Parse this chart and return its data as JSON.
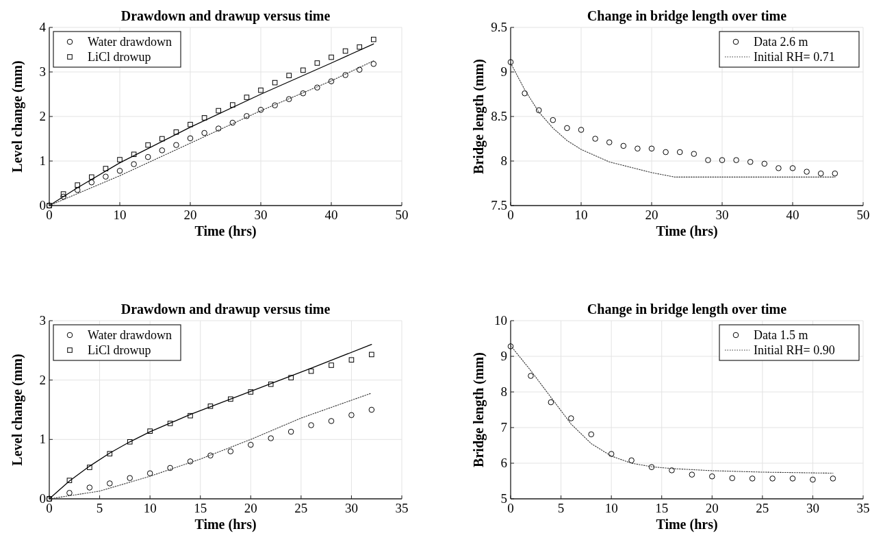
{
  "chart_data": [
    {
      "type": "scatter",
      "title": "Drawdown and drawup versus time",
      "xlabel": "Time (hrs)",
      "ylabel": "Level change (mm)",
      "xlim": [
        0,
        50
      ],
      "xticks": [
        0,
        10,
        20,
        30,
        40,
        50
      ],
      "ylim": [
        0,
        4
      ],
      "yticks": [
        0,
        1,
        2,
        3,
        4
      ],
      "grid": true,
      "legend": "top left",
      "series": [
        {
          "name": "Water drawdown",
          "marker": "circle",
          "color": "#000000",
          "x": [
            0,
            2,
            4,
            6,
            8,
            10,
            12,
            14,
            16,
            18,
            20,
            22,
            24,
            26,
            28,
            30,
            32,
            34,
            36,
            38,
            40,
            42,
            44,
            46
          ],
          "values": [
            0,
            0.2,
            0.35,
            0.52,
            0.65,
            0.78,
            0.93,
            1.09,
            1.24,
            1.36,
            1.51,
            1.63,
            1.73,
            1.86,
            2.01,
            2.15,
            2.25,
            2.39,
            2.52,
            2.65,
            2.79,
            2.93,
            3.05,
            3.18
          ]
        },
        {
          "name": "LiCl drowup",
          "type": "scatter",
          "marker": "square",
          "color": "#000000",
          "x": [
            0,
            2,
            4,
            6,
            8,
            10,
            12,
            14,
            16,
            18,
            20,
            22,
            24,
            26,
            28,
            30,
            32,
            34,
            36,
            38,
            40,
            42,
            44,
            46
          ],
          "values": [
            0,
            0.26,
            0.46,
            0.64,
            0.83,
            1.03,
            1.15,
            1.36,
            1.5,
            1.65,
            1.82,
            1.97,
            2.13,
            2.26,
            2.43,
            2.59,
            2.76,
            2.92,
            3.04,
            3.2,
            3.33,
            3.47,
            3.56,
            3.73
          ]
        },
        {
          "type": "line",
          "line_style": "solid",
          "color": "#000000",
          "x": [
            0,
            2,
            4,
            10,
            20,
            30,
            40,
            46
          ],
          "values": [
            0,
            0.2,
            0.4,
            0.96,
            1.76,
            2.5,
            3.2,
            3.63
          ]
        },
        {
          "type": "line",
          "line_style": "dotted",
          "color": "#333333",
          "x": [
            0,
            10,
            20,
            30,
            40,
            46
          ],
          "values": [
            0,
            0.67,
            1.4,
            2.13,
            2.8,
            3.25
          ]
        }
      ]
    },
    {
      "type": "scatter",
      "title": "Change in bridge length over time",
      "xlabel": "Time (hrs)",
      "ylabel": "Bridge length (mm)",
      "xlim": [
        0,
        50
      ],
      "xticks": [
        0,
        10,
        20,
        30,
        40,
        50
      ],
      "ylim": [
        7.5,
        9.5
      ],
      "yticks": [
        7.5,
        8,
        8.5,
        9,
        9.5
      ],
      "grid": true,
      "legend": "top right",
      "series": [
        {
          "name": "Data 2.6 m",
          "marker": "circle",
          "color": "#000000",
          "x": [
            0,
            2,
            4,
            6,
            8,
            10,
            12,
            14,
            16,
            18,
            20,
            22,
            24,
            26,
            28,
            30,
            32,
            34,
            36,
            38,
            40,
            42,
            44,
            46
          ],
          "values": [
            9.11,
            8.76,
            8.57,
            8.46,
            8.37,
            8.35,
            8.25,
            8.21,
            8.17,
            8.14,
            8.14,
            8.1,
            8.1,
            8.08,
            8.01,
            8.01,
            8.01,
            7.99,
            7.97,
            7.92,
            7.92,
            7.88,
            7.86,
            7.86
          ]
        },
        {
          "name": "Initial RH= 0.71",
          "type": "line",
          "line_style": "dotted",
          "color": "#333333",
          "x": [
            0,
            2,
            4,
            6,
            8,
            10,
            14,
            20,
            23.3,
            46
          ],
          "values": [
            9.1,
            8.8,
            8.55,
            8.37,
            8.23,
            8.13,
            7.99,
            7.87,
            7.82,
            7.82
          ]
        }
      ]
    },
    {
      "type": "scatter",
      "title": "Drawdown and drawup versus time",
      "xlabel": "Time (hrs)",
      "ylabel": "Level change (mm)",
      "xlim": [
        0,
        35
      ],
      "xticks": [
        0,
        5,
        10,
        15,
        20,
        25,
        30,
        35
      ],
      "ylim": [
        0,
        3
      ],
      "yticks": [
        0,
        1,
        2,
        3
      ],
      "grid": true,
      "legend": "top left",
      "series": [
        {
          "name": "Water drawdown",
          "marker": "circle",
          "color": "#000000",
          "x": [
            0,
            2,
            4,
            6,
            8,
            10,
            12,
            14,
            16,
            18,
            20,
            22,
            24,
            26,
            28,
            30,
            32
          ],
          "values": [
            0,
            0.1,
            0.19,
            0.26,
            0.35,
            0.43,
            0.52,
            0.63,
            0.73,
            0.8,
            0.91,
            1.02,
            1.13,
            1.24,
            1.31,
            1.41,
            1.5
          ]
        },
        {
          "name": "LiCl drowup",
          "type": "scatter",
          "marker": "square",
          "color": "#000000",
          "x": [
            0,
            2,
            4,
            6,
            8,
            10,
            12,
            14,
            16,
            18,
            20,
            22,
            24,
            26,
            28,
            30,
            32
          ],
          "values": [
            0,
            0.31,
            0.53,
            0.76,
            0.96,
            1.14,
            1.27,
            1.4,
            1.56,
            1.68,
            1.8,
            1.93,
            2.04,
            2.15,
            2.25,
            2.34,
            2.43
          ]
        },
        {
          "type": "line",
          "line_style": "solid",
          "color": "#000000",
          "x": [
            0,
            2,
            4,
            6,
            8,
            10,
            14,
            20,
            26,
            32
          ],
          "values": [
            0,
            0.3,
            0.55,
            0.77,
            0.96,
            1.13,
            1.42,
            1.81,
            2.2,
            2.6
          ]
        },
        {
          "type": "line",
          "line_style": "dotted",
          "color": "#333333",
          "x": [
            0,
            5,
            10,
            15,
            20,
            25,
            32
          ],
          "values": [
            0,
            0.13,
            0.38,
            0.67,
            1.0,
            1.36,
            1.78
          ]
        }
      ]
    },
    {
      "type": "scatter",
      "title": "Change in bridge length over time",
      "xlabel": "Time (hrs)",
      "ylabel": "Bridge length (mm)",
      "xlim": [
        0,
        35
      ],
      "xticks": [
        0,
        5,
        10,
        15,
        20,
        25,
        30,
        35
      ],
      "ylim": [
        5,
        10
      ],
      "yticks": [
        5,
        6,
        7,
        8,
        9,
        10
      ],
      "grid": true,
      "legend": "top right",
      "series": [
        {
          "name": "Data 1.5 m",
          "marker": "circle",
          "color": "#000000",
          "x": [
            0,
            2,
            4,
            6,
            8,
            10,
            12,
            14,
            16,
            18,
            20,
            22,
            24,
            26,
            28,
            30,
            32
          ],
          "values": [
            9.28,
            8.45,
            7.71,
            7.26,
            6.81,
            6.26,
            6.08,
            5.89,
            5.8,
            5.68,
            5.63,
            5.58,
            5.57,
            5.57,
            5.57,
            5.54,
            5.57
          ]
        },
        {
          "name": "Initial RH= 0.90",
          "type": "line",
          "line_style": "dotted",
          "color": "#333333",
          "x": [
            0,
            2,
            4,
            6,
            8,
            10,
            12,
            14,
            16,
            20,
            25,
            32
          ],
          "values": [
            9.3,
            8.6,
            7.85,
            7.1,
            6.55,
            6.2,
            6.0,
            5.9,
            5.85,
            5.79,
            5.75,
            5.72
          ]
        }
      ]
    }
  ]
}
